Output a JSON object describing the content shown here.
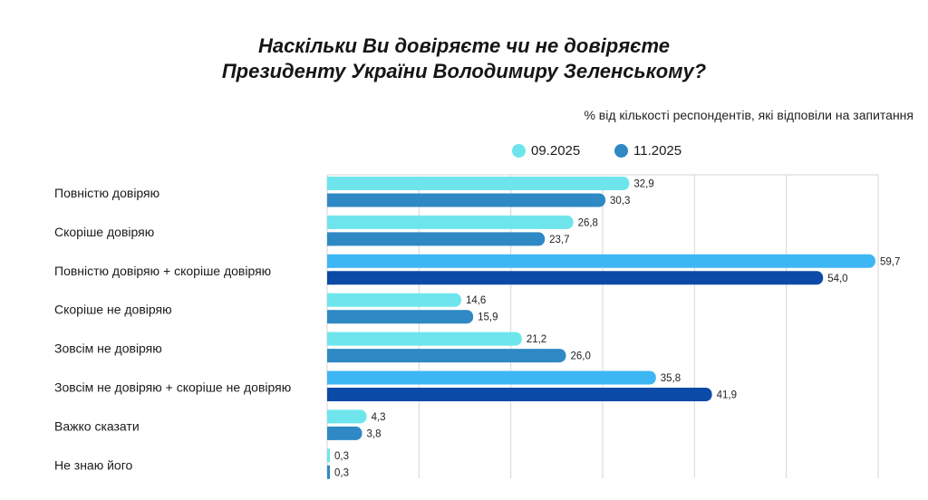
{
  "chart_data": {
    "type": "bar",
    "orientation": "horizontal",
    "title": [
      "Наскільки Ви довіряєте чи не довіряєте",
      "Президенту України Володимиру Зеленському?"
    ],
    "subtitle": "% від кількості респондентів, які відповіли на запитання",
    "legend_position": "top-right",
    "grid": true,
    "xlim": [
      0,
      60
    ],
    "categories": [
      "Повністю довіряю",
      "Скоріше довіряю",
      "Повністю довіряю + скоріше довіряю",
      "Скоріше не довіряю",
      "Зовсім не довіряю",
      "Зовсім не довіряю + скоріше не довіряю",
      "Важко сказати",
      "Не знаю його"
    ],
    "series": [
      {
        "name": "09.2025",
        "color": "#6ee5ec",
        "values": [
          32.9,
          26.8,
          59.7,
          14.6,
          21.2,
          35.8,
          4.3,
          0.3
        ],
        "labels": [
          "32,9",
          "26,8",
          "59,7",
          "14,6",
          "21,2",
          "35,8",
          "4,3",
          "0,3"
        ]
      },
      {
        "name": "11.2025",
        "color": "#2e89c4",
        "values": [
          30.3,
          23.7,
          54.0,
          15.9,
          26.0,
          41.9,
          3.8,
          0.3
        ],
        "labels": [
          "30,3",
          "23,7",
          "54,0",
          "15,9",
          "26,0",
          "41,9",
          "3,8",
          "0,3"
        ]
      }
    ],
    "summary_colors": {
      "09.2025": "#3db6f4",
      "11.2025": "#0b4aa6"
    },
    "summary_rows": [
      2,
      5
    ]
  },
  "legend": [
    {
      "label": "09.2025",
      "color": "#6ee5ec"
    },
    {
      "label": "11.2025",
      "color": "#2e89c4"
    }
  ]
}
